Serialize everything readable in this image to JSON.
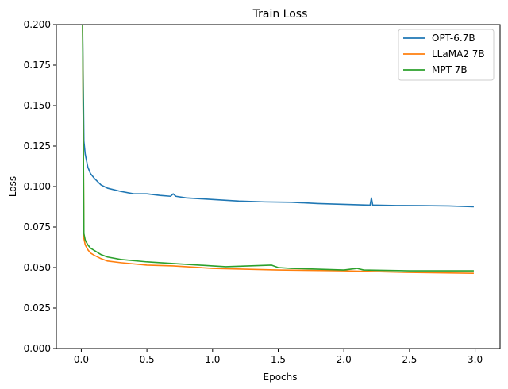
{
  "chart_data": {
    "type": "line",
    "title": "Train Loss",
    "xlabel": "Epochs",
    "ylabel": "Loss",
    "xlim": [
      -0.19,
      3.19
    ],
    "ylim": [
      0.0,
      0.2
    ],
    "xticks": [
      0.0,
      0.5,
      1.0,
      1.5,
      2.0,
      2.5,
      3.0
    ],
    "xtick_labels": [
      "0.0",
      "0.5",
      "1.0",
      "1.5",
      "2.0",
      "2.5",
      "3.0"
    ],
    "yticks": [
      0.0,
      0.025,
      0.05,
      0.075,
      0.1,
      0.125,
      0.15,
      0.175,
      0.2
    ],
    "ytick_labels": [
      "0.000",
      "0.025",
      "0.050",
      "0.075",
      "0.100",
      "0.125",
      "0.150",
      "0.175",
      "0.200"
    ],
    "grid": false,
    "legend_position": "top-right",
    "series": [
      {
        "name": "OPT-6.7B",
        "color": "#1f77b4",
        "x": [
          0.0,
          0.01,
          0.02,
          0.03,
          0.05,
          0.07,
          0.1,
          0.15,
          0.2,
          0.3,
          0.4,
          0.5,
          0.6,
          0.68,
          0.7,
          0.72,
          0.8,
          0.9,
          1.0,
          1.2,
          1.4,
          1.6,
          1.8,
          2.0,
          2.2,
          2.21,
          2.22,
          2.25,
          2.4,
          2.6,
          2.8,
          2.99
        ],
        "values": [
          0.2,
          0.2,
          0.128,
          0.12,
          0.112,
          0.108,
          0.105,
          0.101,
          0.099,
          0.097,
          0.0955,
          0.0955,
          0.0945,
          0.094,
          0.0955,
          0.094,
          0.093,
          0.0925,
          0.092,
          0.091,
          0.0905,
          0.0903,
          0.0895,
          0.089,
          0.0885,
          0.093,
          0.0885,
          0.0885,
          0.0883,
          0.0882,
          0.088,
          0.0875
        ]
      },
      {
        "name": "LLaMA2 7B",
        "color": "#ff7f0e",
        "x": [
          0.0,
          0.01,
          0.02,
          0.03,
          0.05,
          0.07,
          0.1,
          0.15,
          0.2,
          0.3,
          0.5,
          0.7,
          1.0,
          1.5,
          2.0,
          2.5,
          2.99
        ],
        "values": [
          0.2,
          0.2,
          0.068,
          0.064,
          0.061,
          0.059,
          0.0575,
          0.0555,
          0.054,
          0.053,
          0.0515,
          0.051,
          0.0495,
          0.0485,
          0.048,
          0.047,
          0.0465
        ]
      },
      {
        "name": "MPT 7B",
        "color": "#2ca02c",
        "x": [
          0.0,
          0.01,
          0.02,
          0.03,
          0.05,
          0.07,
          0.1,
          0.15,
          0.2,
          0.3,
          0.5,
          0.7,
          1.0,
          1.1,
          1.45,
          1.5,
          1.6,
          2.0,
          2.1,
          2.15,
          2.5,
          2.99
        ],
        "values": [
          0.2,
          0.2,
          0.071,
          0.067,
          0.064,
          0.062,
          0.0605,
          0.058,
          0.0565,
          0.055,
          0.0535,
          0.0525,
          0.051,
          0.0505,
          0.0515,
          0.05,
          0.0495,
          0.0485,
          0.0495,
          0.0485,
          0.048,
          0.048
        ]
      }
    ]
  }
}
